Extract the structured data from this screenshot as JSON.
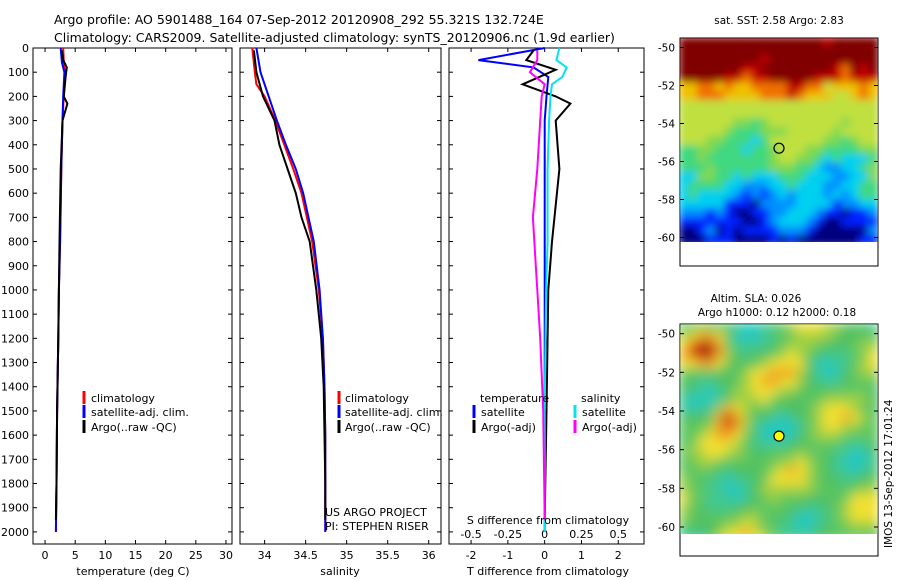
{
  "title_line1": "Argo profile: AO 5901488_164 07-Sep-2012 20120908_292 55.321S 132.724E",
  "title_line2": "Climatology: CARS2009. Satellite-adjusted climatology: synTS_20120906.nc (1.9d earlier)",
  "footer_stamp": "IMOS 13-Sep-2012 17:01:24",
  "colors": {
    "climatology": "#ff0000",
    "satellite": "#0000ff",
    "argo": "#000000",
    "cyan": "#00e5ee",
    "magenta": "#ff00ff"
  },
  "chart_data": [
    {
      "type": "line",
      "xlabel": "temperature (deg C)",
      "xlim": [
        -2,
        31
      ],
      "ylim": [
        2050,
        0
      ],
      "xticks": [
        "0",
        "5",
        "10",
        "15",
        "20",
        "25",
        "30"
      ],
      "yticks": [
        "0",
        "100",
        "200",
        "300",
        "400",
        "500",
        "600",
        "700",
        "800",
        "900",
        "1000",
        "1100",
        "1200",
        "1300",
        "1400",
        "1500",
        "1600",
        "1700",
        "1800",
        "1900",
        "2000"
      ],
      "legend": [
        "climatology",
        "satellite-adj. clim.",
        "Argo(..raw -QC)"
      ],
      "series": [
        {
          "name": "climatology",
          "depth": [
            0,
            60,
            100,
            200,
            300,
            500,
            800,
            1000,
            1200,
            1500,
            1800,
            2000
          ],
          "values": [
            3.0,
            3.1,
            3.3,
            3.1,
            2.9,
            2.7,
            2.5,
            2.3,
            2.2,
            2.0,
            1.9,
            1.8
          ]
        },
        {
          "name": "satellite-adj. clim.",
          "depth": [
            0,
            60,
            100,
            200,
            300,
            500,
            800,
            1000,
            1200,
            1500,
            1800,
            2000
          ],
          "values": [
            2.6,
            2.8,
            3.2,
            3.0,
            2.9,
            2.7,
            2.5,
            2.3,
            2.2,
            2.0,
            1.9,
            1.8
          ]
        },
        {
          "name": "Argo(..raw -QC)",
          "depth": [
            10,
            50,
            80,
            120,
            200,
            230,
            300,
            500,
            800,
            1000,
            1200,
            1500,
            1800,
            1950
          ],
          "values": [
            2.8,
            3.0,
            3.6,
            3.4,
            3.1,
            3.7,
            2.9,
            2.6,
            2.4,
            2.3,
            2.2,
            2.0,
            1.9,
            1.8
          ]
        }
      ]
    },
    {
      "type": "line",
      "xlabel": "salinity",
      "xlim": [
        33.7,
        36.15
      ],
      "ylim": [
        2050,
        0
      ],
      "xticks": [
        "34",
        "34.5",
        "35",
        "35.5",
        "36"
      ],
      "legend": [
        "climatology",
        "satellite-adj. clim.",
        "Argo(..raw -QC)"
      ],
      "annotations": [
        "US ARGO PROJECT",
        "PI: STEPHEN RISER"
      ],
      "series": [
        {
          "name": "climatology",
          "depth": [
            0,
            100,
            150,
            200,
            300,
            400,
            500,
            600,
            800,
            1000,
            1200,
            1400,
            1600,
            1800,
            2000
          ],
          "values": [
            33.85,
            33.88,
            33.9,
            34.0,
            34.13,
            34.24,
            34.35,
            34.45,
            34.58,
            34.66,
            34.71,
            34.73,
            34.74,
            34.74,
            34.74
          ]
        },
        {
          "name": "satellite-adj. clim.",
          "depth": [
            0,
            100,
            150,
            200,
            300,
            400,
            500,
            600,
            800,
            1000,
            1200,
            1400,
            1600,
            1800,
            2000
          ],
          "values": [
            33.9,
            33.95,
            34.0,
            34.05,
            34.15,
            34.26,
            34.38,
            34.47,
            34.6,
            34.67,
            34.71,
            34.73,
            34.74,
            34.74,
            34.74
          ]
        },
        {
          "name": "Argo(..raw -QC)",
          "depth": [
            10,
            100,
            150,
            200,
            300,
            400,
            500,
            600,
            700,
            800,
            1000,
            1200,
            1400,
            1600,
            1800,
            1950
          ],
          "values": [
            33.87,
            33.9,
            33.94,
            33.98,
            34.12,
            34.18,
            34.28,
            34.38,
            34.45,
            34.55,
            34.63,
            34.69,
            34.72,
            34.73,
            34.74,
            34.74
          ]
        }
      ]
    },
    {
      "type": "line",
      "xlabel": "T difference from climatology",
      "x2label": "S difference from climatology",
      "xlim": [
        -2.6,
        2.7
      ],
      "ylim": [
        2050,
        0
      ],
      "xticks": [
        "-2",
        "-1",
        "0",
        "1",
        "2"
      ],
      "x2ticks": [
        "-0.5",
        "-0.25",
        "0",
        "0.25",
        "0.5"
      ],
      "legend": {
        "temperature": [
          "satellite",
          "Argo(-adj)"
        ],
        "salinity": [
          "satellite",
          "Argo(-adj)"
        ]
      },
      "series": [
        {
          "name": "temperature satellite",
          "depth": [
            0,
            50,
            80,
            120,
            200,
            300,
            500,
            800,
            1000,
            1500,
            2000
          ],
          "values": [
            0.0,
            -1.8,
            -0.3,
            0.1,
            0.05,
            0.0,
            0.0,
            0.0,
            0.0,
            0.0,
            0.0
          ]
        },
        {
          "name": "temperature Argo(-adj)",
          "depth": [
            10,
            50,
            90,
            150,
            200,
            230,
            300,
            500,
            800,
            1000,
            1500,
            1950
          ],
          "values": [
            -0.3,
            -0.5,
            0.3,
            -0.6,
            0.3,
            0.7,
            0.3,
            0.4,
            0.2,
            0.1,
            0.05,
            0.0
          ]
        },
        {
          "name": "salinity satellite",
          "depth": [
            0,
            50,
            80,
            120,
            150,
            200,
            300,
            500,
            800,
            1000,
            1500,
            2000
          ],
          "values": [
            0.1,
            0.08,
            0.15,
            0.12,
            0.05,
            0.04,
            0.03,
            0.02,
            0.02,
            0.01,
            0.0,
            0.0
          ]
        },
        {
          "name": "salinity Argo(-adj)",
          "depth": [
            10,
            50,
            100,
            150,
            200,
            300,
            500,
            700,
            900,
            1000,
            1200,
            1500,
            1950
          ],
          "values": [
            -0.05,
            -0.05,
            -0.1,
            0.0,
            -0.02,
            -0.03,
            -0.05,
            -0.08,
            -0.06,
            -0.05,
            -0.03,
            -0.01,
            0.0
          ]
        }
      ]
    },
    {
      "type": "heatmap",
      "title": "sat. SST: 2.58 Argo: 2.83",
      "xticks": [
        "125",
        "130",
        "135",
        "140"
      ],
      "yticks": [
        "-50",
        "-52",
        "-54",
        "-56",
        "-58",
        "-60"
      ],
      "xlim": [
        123.8,
        141.6
      ],
      "ylim": [
        -61.5,
        -49.5
      ],
      "marker": {
        "lon": 132.7,
        "lat": -55.3
      }
    },
    {
      "type": "heatmap",
      "title": "Altim. SLA: 0.026",
      "subtitle": "Argo h1000: 0.12 h2000: 0.18",
      "xticks": [
        "125",
        "130",
        "135",
        "140"
      ],
      "yticks": [
        "-50",
        "-52",
        "-54",
        "-56",
        "-58",
        "-60"
      ],
      "xlim": [
        123.8,
        141.6
      ],
      "ylim": [
        -61.5,
        -49.5
      ],
      "marker": {
        "lon": 132.7,
        "lat": -55.3
      }
    }
  ]
}
